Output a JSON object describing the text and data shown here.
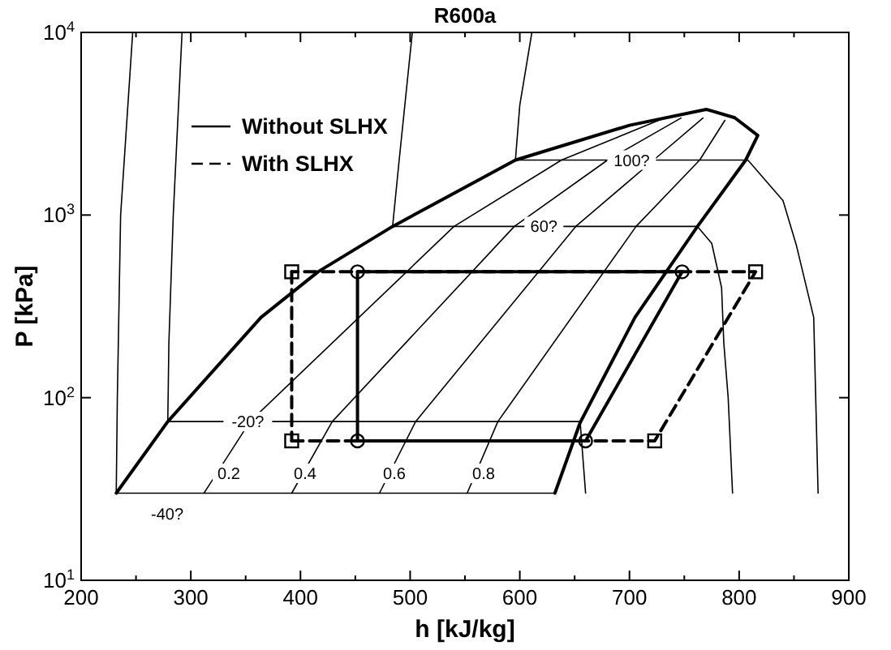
{
  "chart_data": {
    "type": "line",
    "title": "R600a",
    "xlabel": "h [kJ/kg]",
    "ylabel": "P [kPa]",
    "log": true,
    "legend": "top left",
    "marker": "none",
    "line_style": "solid",
    "xlim": [
      200,
      900
    ],
    "ylim": [
      10,
      10000
    ],
    "xticks": [
      200,
      {
        "value": 250,
        "label": null
      },
      300,
      {
        "value": 350,
        "label": null
      },
      400,
      {
        "value": 450,
        "label": null
      },
      500,
      {
        "value": 550,
        "label": null
      },
      600,
      {
        "value": 650,
        "label": null
      },
      700,
      {
        "value": 750,
        "label": null
      },
      800,
      {
        "value": 850,
        "label": null
      },
      900
    ],
    "yticks": [
      {
        "value": 10,
        "label": "10$^{1}$"
      },
      {
        "value": 100,
        "label": "10$^{2}$"
      },
      {
        "value": 1000,
        "label": "10$^{3}$"
      },
      {
        "value": 10000,
        "label": "10$^{4}$"
      }
    ],
    "series": [
      {
        "color": "#000000",
        "x": [
          232,
          279,
          364,
          416,
          484,
          596,
          700,
          770,
          796,
          817,
          806,
          762,
          705,
          655,
          632
        ],
        "values": [
          30,
          74,
          275,
          489,
          866,
          2000,
          3100,
          3790,
          3410,
          2730,
          2000,
          866,
          275,
          73,
          30
        ]
      },
      {
        "color": "#000000",
        "x": [
          247,
          236,
          233,
          232,
          632
        ],
        "values": [
          10000,
          1000,
          100,
          30,
          30
        ]
      },
      {
        "color": "#000000",
        "x": [
          292,
          284,
          280,
          279,
          655,
          660
        ],
        "values": [
          10000,
          1000,
          200,
          74,
          74,
          30
        ]
      },
      {
        "color": "#000000",
        "x": [
          502,
          490,
          484,
          762,
          775,
          784,
          786,
          790,
          794
        ],
        "values": [
          10000,
          2000,
          866,
          866,
          700,
          400,
          200,
          100,
          30
        ]
      },
      {
        "color": "#000000",
        "x": [
          611,
          600,
          596,
          808,
          840,
          852,
          868,
          872
        ],
        "values": [
          10000,
          4000,
          2000,
          2000,
          1200,
          690,
          275,
          30
        ]
      },
      {
        "color": "#000000",
        "x": [
          312,
          354,
          540,
          638,
          732
        ],
        "values": [
          30,
          74,
          866,
          2000,
          3400
        ]
      },
      {
        "color": "#000000",
        "x": [
          392,
          429,
          595,
          680,
          747
        ],
        "values": [
          30,
          74,
          866,
          2000,
          3400
        ]
      },
      {
        "color": "#000000",
        "x": [
          472,
          505,
          651,
          722,
          767
        ],
        "values": [
          30,
          74,
          866,
          2000,
          3400
        ]
      },
      {
        "color": "#000000",
        "x": [
          552,
          580,
          706,
          764,
          787
        ],
        "values": [
          30,
          74,
          866,
          2000,
          3300
        ]
      },
      {
        "name": "Without SLHX",
        "color": "#000000",
        "marker": "circle",
        "line_style": "solid",
        "x": [
          452,
          660,
          748,
          452
        ],
        "values": [
          58,
          58,
          489,
          489
        ]
      },
      {
        "color": "#000000",
        "marker": "none",
        "line_style": "solid",
        "x": [
          452,
          452
        ],
        "values": [
          489,
          58
        ]
      },
      {
        "name": "With SLHX",
        "color": "#000000",
        "marker": "square",
        "line_style": "dashed",
        "x": [
          392,
          723,
          815,
          392
        ],
        "values": [
          58,
          58,
          489,
          489
        ]
      },
      {
        "color": "#000000",
        "marker": "none",
        "line_style": "dashed",
        "x": [
          392,
          392
        ],
        "values": [
          489,
          58
        ]
      }
    ],
    "annotations": [
      "-40?",
      {
        "text": "-20?",
        "x": 352,
        "y": 74
      },
      {
        "text": "60?",
        "x": 622,
        "y": 866
      },
      {
        "text": "100?",
        "x": 702,
        "y": 2000
      },
      "0.2",
      "0.4",
      "0.6",
      "0.8"
    ]
  }
}
